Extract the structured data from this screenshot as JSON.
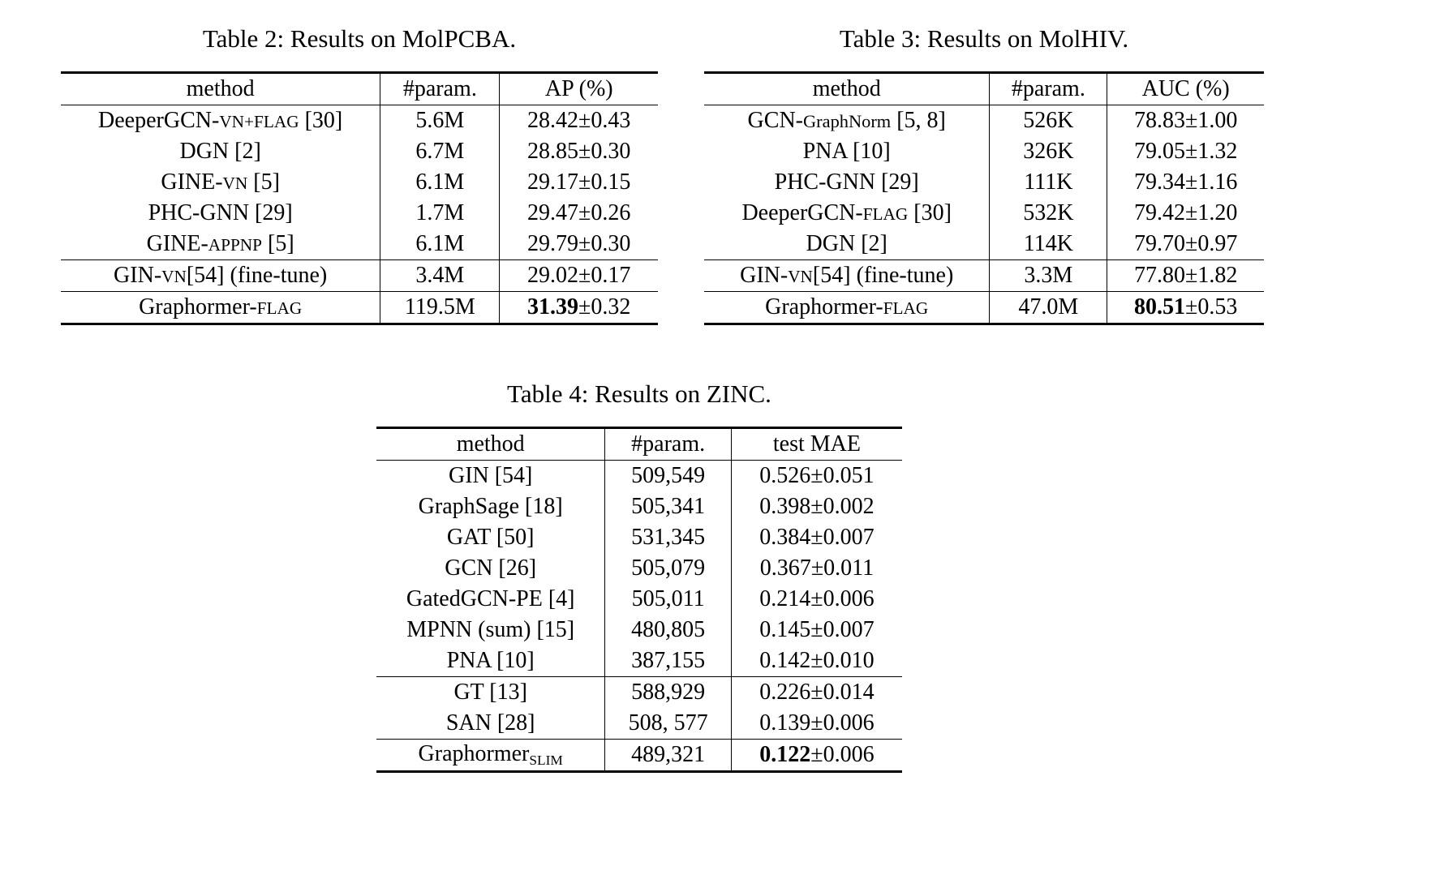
{
  "page": {
    "background": "#ffffff",
    "text_color": "#000000"
  },
  "tables": [
    {
      "caption": "Table 2: Results on MolPCBA.",
      "columns": [
        "method",
        "#param.",
        "AP (%)"
      ],
      "groups": [
        {
          "rows": [
            {
              "method": [
                {
                  "t": "DeeperGCN-"
                },
                {
                  "t": "VN+FLAG",
                  "style": "sc"
                },
                {
                  "t": " [30]"
                }
              ],
              "param": "5.6M",
              "result": "28.42",
              "pm": "±0.43",
              "bold": false
            },
            {
              "method": [
                {
                  "t": "DGN [2]"
                }
              ],
              "param": "6.7M",
              "result": "28.85",
              "pm": "±0.30",
              "bold": false
            },
            {
              "method": [
                {
                  "t": "GINE-"
                },
                {
                  "t": "VN",
                  "style": "sc"
                },
                {
                  "t": " [5]"
                }
              ],
              "param": "6.1M",
              "result": "29.17",
              "pm": "±0.15",
              "bold": false
            },
            {
              "method": [
                {
                  "t": "PHC-GNN [29]"
                }
              ],
              "param": "1.7M",
              "result": "29.47",
              "pm": "±0.26",
              "bold": false
            },
            {
              "method": [
                {
                  "t": "GINE-"
                },
                {
                  "t": "APPNP",
                  "style": "sc"
                },
                {
                  "t": " [5]"
                }
              ],
              "param": "6.1M",
              "result": "29.79",
              "pm": "±0.30",
              "bold": false
            }
          ]
        },
        {
          "rows": [
            {
              "method": [
                {
                  "t": "GIN-"
                },
                {
                  "t": "VN",
                  "style": "sc"
                },
                {
                  "t": "[54] (fine-tune)"
                }
              ],
              "param": "3.4M",
              "result": "29.02",
              "pm": "±0.17",
              "bold": false
            }
          ]
        },
        {
          "rows": [
            {
              "method": [
                {
                  "t": "Graphormer-"
                },
                {
                  "t": "FLAG",
                  "style": "sc"
                }
              ],
              "param": "119.5M",
              "result": "31.39",
              "pm": "±0.32",
              "bold": true
            }
          ]
        }
      ]
    },
    {
      "caption": "Table 3: Results on MolHIV.",
      "columns": [
        "method",
        "#param.",
        "AUC (%)"
      ],
      "groups": [
        {
          "rows": [
            {
              "method": [
                {
                  "t": "GCN-"
                },
                {
                  "t": "GraphNorm",
                  "style": "sm"
                },
                {
                  "t": " [5, 8]"
                }
              ],
              "param": "526K",
              "result": "78.83",
              "pm": "±1.00",
              "bold": false
            },
            {
              "method": [
                {
                  "t": "PNA [10]"
                }
              ],
              "param": "326K",
              "result": "79.05",
              "pm": "±1.32",
              "bold": false
            },
            {
              "method": [
                {
                  "t": "PHC-GNN [29]"
                }
              ],
              "param": "111K",
              "result": "79.34",
              "pm": "±1.16",
              "bold": false
            },
            {
              "method": [
                {
                  "t": "DeeperGCN-"
                },
                {
                  "t": "FLAG",
                  "style": "sc"
                },
                {
                  "t": " [30]"
                }
              ],
              "param": "532K",
              "result": "79.42",
              "pm": "±1.20",
              "bold": false
            },
            {
              "method": [
                {
                  "t": "DGN [2]"
                }
              ],
              "param": "114K",
              "result": "79.70",
              "pm": "±0.97",
              "bold": false
            }
          ]
        },
        {
          "rows": [
            {
              "method": [
                {
                  "t": "GIN-"
                },
                {
                  "t": "VN",
                  "style": "sc"
                },
                {
                  "t": "[54] (fine-tune)"
                }
              ],
              "param": "3.3M",
              "result": "77.80",
              "pm": "±1.82",
              "bold": false
            }
          ]
        },
        {
          "rows": [
            {
              "method": [
                {
                  "t": "Graphormer-"
                },
                {
                  "t": "FLAG",
                  "style": "sc"
                }
              ],
              "param": "47.0M",
              "result": "80.51",
              "pm": "±0.53",
              "bold": true
            }
          ]
        }
      ]
    },
    {
      "caption": "Table 4: Results on ZINC.",
      "columns": [
        "method",
        "#param.",
        "test MAE"
      ],
      "groups": [
        {
          "rows": [
            {
              "method": [
                {
                  "t": "GIN [54]"
                }
              ],
              "param": "509,549",
              "result": "0.526",
              "pm": "±0.051",
              "bold": false
            },
            {
              "method": [
                {
                  "t": "GraphSage [18]"
                }
              ],
              "param": "505,341",
              "result": "0.398",
              "pm": "±0.002",
              "bold": false
            },
            {
              "method": [
                {
                  "t": "GAT [50]"
                }
              ],
              "param": "531,345",
              "result": "0.384",
              "pm": "±0.007",
              "bold": false
            },
            {
              "method": [
                {
                  "t": "GCN [26]"
                }
              ],
              "param": "505,079",
              "result": "0.367",
              "pm": "±0.011",
              "bold": false
            },
            {
              "method": [
                {
                  "t": "GatedGCN-PE [4]"
                }
              ],
              "param": "505,011",
              "result": "0.214",
              "pm": "±0.006",
              "bold": false
            },
            {
              "method": [
                {
                  "t": "MPNN (sum) [15]"
                }
              ],
              "param": "480,805",
              "result": "0.145",
              "pm": "±0.007",
              "bold": false
            },
            {
              "method": [
                {
                  "t": "PNA [10]"
                }
              ],
              "param": "387,155",
              "result": "0.142",
              "pm": "±0.010",
              "bold": false
            }
          ]
        },
        {
          "rows": [
            {
              "method": [
                {
                  "t": "GT [13]"
                }
              ],
              "param": "588,929",
              "result": "0.226",
              "pm": "±0.014",
              "bold": false
            },
            {
              "method": [
                {
                  "t": "SAN [28]"
                }
              ],
              "param": "508, 577",
              "result": "0.139",
              "pm": "±0.006",
              "bold": false
            }
          ]
        },
        {
          "rows": [
            {
              "method": [
                {
                  "t": "Graphormer"
                },
                {
                  "t": "SLIM",
                  "style": "sub"
                }
              ],
              "param": "489,321",
              "result": "0.122",
              "pm": "±0.006",
              "bold": true
            }
          ]
        }
      ]
    }
  ]
}
